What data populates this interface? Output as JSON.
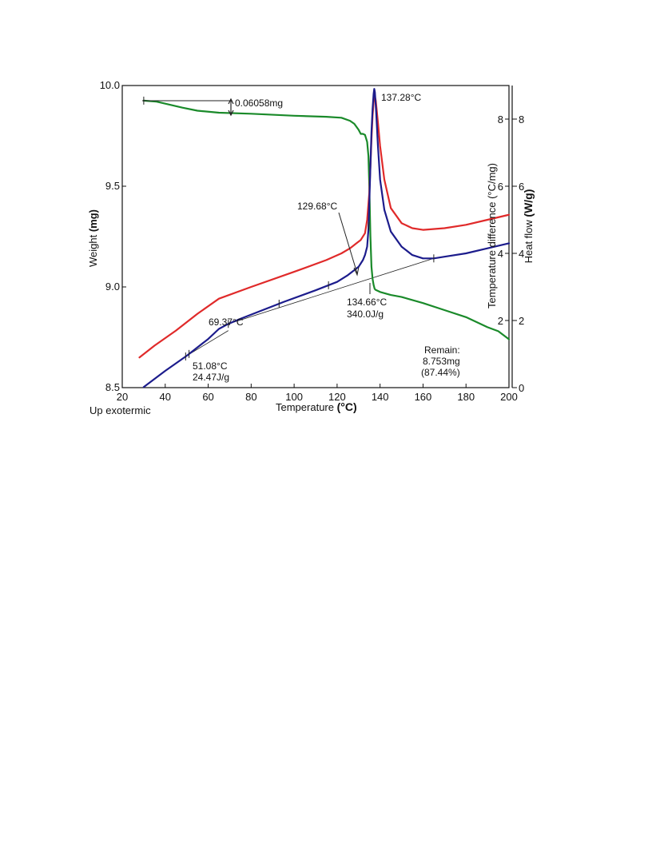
{
  "chart_data": {
    "type": "line",
    "xlabel": "Temperature",
    "xlabel_unit": "(°C)",
    "ylabel_left": "Weight",
    "ylabel_left_unit": "(mg)",
    "ylabel_right_inner": "Temperature difference  (°C/mg)",
    "ylabel_right_outer": "Heat flow",
    "ylabel_right_outer_unit": "(W/g)",
    "bottom_left_note": "Up exotermic",
    "xlim": [
      20,
      200
    ],
    "ylim_left": [
      8.5,
      10.0
    ],
    "ylim_right": [
      0,
      9
    ],
    "x_ticks": [
      "20",
      "40",
      "60",
      "80",
      "100",
      "120",
      "140",
      "160",
      "180",
      "200"
    ],
    "y_left_ticks": [
      "8.5",
      "9.0",
      "9.5",
      "10.0"
    ],
    "y_right_inner_ticks": [
      "2",
      "4",
      "6",
      "8"
    ],
    "y_right_outer_ticks": [
      "0",
      "2",
      "4",
      "6",
      "8"
    ],
    "grid": false,
    "colors": {
      "weight": "#1a8a2a",
      "temperature_difference": "#e02a2a",
      "heat_flow": "#1c1c8c",
      "baseline": "#222222"
    },
    "series": [
      {
        "axis": "left",
        "color": "#1a8a2a",
        "x": [
          30,
          36,
          42,
          48,
          55,
          65,
          80,
          100,
          115,
          122,
          126,
          128,
          130,
          131,
          132,
          133,
          134,
          134.6,
          135,
          135.5,
          136,
          136.5,
          137,
          137.5,
          138,
          139,
          140,
          145,
          150,
          160,
          170,
          180,
          190,
          195,
          200
        ],
        "y": [
          9.925,
          9.92,
          9.905,
          9.89,
          9.875,
          9.865,
          9.86,
          9.85,
          9.845,
          9.84,
          9.825,
          9.81,
          9.78,
          9.76,
          9.76,
          9.755,
          9.72,
          9.65,
          9.5,
          9.25,
          9.1,
          9.04,
          9.01,
          8.99,
          8.985,
          8.98,
          8.975,
          8.96,
          8.95,
          8.92,
          8.885,
          8.85,
          8.8,
          8.78,
          8.74
        ]
      },
      {
        "axis": "right",
        "color": "#e02a2a",
        "x": [
          28,
          35,
          45,
          55,
          65,
          80,
          100,
          115,
          122,
          126,
          129,
          131,
          133,
          134,
          135,
          135.5,
          136,
          136.5,
          137,
          137.5,
          138,
          139,
          140,
          142,
          145,
          150,
          155,
          160,
          170,
          180,
          190,
          200
        ],
        "y": [
          0.9,
          1.25,
          1.7,
          2.2,
          2.65,
          3.0,
          3.45,
          3.8,
          4.0,
          4.15,
          4.3,
          4.4,
          4.6,
          5.0,
          5.8,
          6.6,
          7.4,
          8.1,
          8.5,
          8.7,
          8.55,
          7.9,
          7.2,
          6.2,
          5.35,
          4.9,
          4.75,
          4.7,
          4.75,
          4.85,
          5.0,
          5.15
        ]
      },
      {
        "axis": "right",
        "color": "#1c1c8c",
        "x": [
          30,
          40,
          50,
          55,
          60,
          65,
          69.37,
          75,
          85,
          95,
          110,
          120,
          125,
          128,
          130,
          131,
          132,
          133,
          134,
          134.6,
          135,
          135.5,
          136,
          136.5,
          137,
          137.28,
          137.6,
          138.2,
          139,
          140,
          142,
          145,
          150,
          155,
          160,
          165,
          170,
          180,
          190,
          200
        ],
        "y": [
          0.02,
          0.5,
          0.95,
          1.2,
          1.45,
          1.75,
          1.9,
          2.05,
          2.3,
          2.55,
          2.9,
          3.15,
          3.35,
          3.5,
          3.6,
          3.7,
          3.8,
          3.95,
          4.2,
          4.7,
          5.5,
          6.6,
          7.6,
          8.3,
          8.75,
          8.9,
          8.8,
          8.2,
          7.2,
          6.2,
          5.3,
          4.65,
          4.2,
          3.95,
          3.85,
          3.85,
          3.9,
          4.0,
          4.15,
          4.3
        ]
      }
    ],
    "baselines": [
      {
        "x": [
          50,
          69.37
        ],
        "y": [
          0.95,
          1.7
        ]
      },
      {
        "x": [
          69.37,
          165
        ],
        "y": [
          1.9,
          3.85
        ]
      }
    ],
    "tick_marks": [
      {
        "series": 0,
        "x": 30
      },
      {
        "series": 2,
        "x": 49.5
      },
      {
        "series": 2,
        "x": 51.08
      },
      {
        "series": 2,
        "x": 69.37
      },
      {
        "series": 2,
        "x": 93
      },
      {
        "series": 2,
        "x": 116
      },
      {
        "series": 2,
        "x": 134.66
      },
      {
        "series": 2,
        "x": 165
      }
    ],
    "annotations": {
      "mass_loss": "0.06058mg",
      "peak_temp": "137.28°C",
      "onset_temp": "129.68°C",
      "peak2_temp": "134.66°C",
      "peak2_enthalpy": "340.0J/g",
      "transition1_temp": "69.37°C",
      "transition2_temp": "51.08°C",
      "transition2_enthalpy": "24.47J/g",
      "remain_label": "Remain:",
      "remain_mass": "8.753mg",
      "remain_percent": "(87.44%)"
    }
  }
}
